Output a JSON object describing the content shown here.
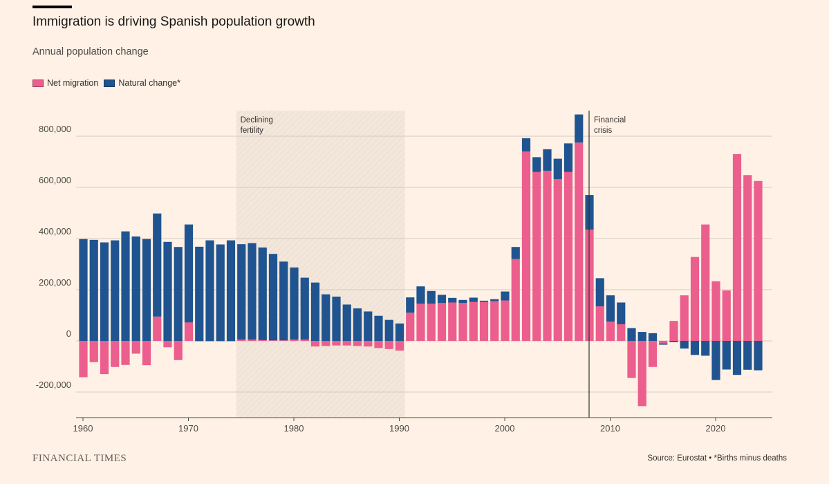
{
  "header": {
    "title": "Immigration is driving Spanish population growth",
    "subtitle": "Annual population change"
  },
  "colors": {
    "net_migration": "#eb5e8d",
    "natural_change": "#1f5490",
    "background": "#fff1e5",
    "grid": "#d6cbc0",
    "shade": "#f1e4d8"
  },
  "footer": {
    "brand": "FINANCIAL TIMES",
    "source": "Source: Eurostat • *Births minus deaths"
  },
  "chart_data": {
    "type": "bar",
    "stacked": true,
    "title": "Immigration is driving Spanish population growth",
    "subtitle": "Annual population change",
    "ylim": [
      -300000,
      900000
    ],
    "yticks": [
      -200000,
      0,
      200000,
      400000,
      600000,
      800000
    ],
    "ytick_labels": [
      "-200,000",
      "0",
      "200,000",
      "400,000",
      "600,000",
      "800,000"
    ],
    "xticks": [
      1960,
      1970,
      1980,
      1990,
      2000,
      2010,
      2020
    ],
    "grid": true,
    "legend_position": "top-left",
    "x": [
      1960,
      1961,
      1962,
      1963,
      1964,
      1965,
      1966,
      1967,
      1968,
      1969,
      1970,
      1971,
      1972,
      1973,
      1974,
      1975,
      1976,
      1977,
      1978,
      1979,
      1980,
      1981,
      1982,
      1983,
      1984,
      1985,
      1986,
      1987,
      1988,
      1989,
      1990,
      1991,
      1992,
      1993,
      1994,
      1995,
      1996,
      1997,
      1998,
      1999,
      2000,
      2001,
      2002,
      2003,
      2004,
      2005,
      2006,
      2007,
      2008,
      2009,
      2010,
      2011,
      2012,
      2013,
      2014,
      2015,
      2016,
      2017,
      2018,
      2019,
      2020,
      2021,
      2022,
      2023,
      2024
    ],
    "series": [
      {
        "name": "Net migration",
        "values": [
          -142000,
          -83000,
          -130000,
          -102000,
          -94000,
          -50000,
          -95000,
          95000,
          -25000,
          -75000,
          72000,
          -2000,
          -2000,
          -2000,
          -2000,
          5000,
          5000,
          3000,
          2000,
          2000,
          5000,
          5000,
          -22000,
          -20000,
          -18000,
          -18000,
          -20000,
          -22000,
          -28000,
          -32000,
          -38000,
          110000,
          145000,
          145000,
          148000,
          150000,
          148000,
          152000,
          152000,
          155000,
          158000,
          320000,
          740000,
          660000,
          665000,
          632000,
          660000,
          775000,
          435000,
          135000,
          75000,
          65000,
          -145000,
          -255000,
          -102000,
          -10000,
          78000,
          178000,
          328000,
          455000,
          233000,
          197000,
          730000,
          648000,
          625000
        ]
      },
      {
        "name": "Natural change*",
        "values": [
          398000,
          395000,
          385000,
          393000,
          428000,
          408000,
          398000,
          403000,
          387000,
          367000,
          383000,
          368000,
          393000,
          377000,
          393000,
          373000,
          377000,
          362000,
          338000,
          308000,
          282000,
          242000,
          228000,
          182000,
          173000,
          142000,
          127000,
          115000,
          98000,
          82000,
          68000,
          60000,
          68000,
          50000,
          32000,
          18000,
          12000,
          17000,
          5000,
          8000,
          35000,
          47000,
          52000,
          58000,
          84000,
          80000,
          112000,
          110000,
          135000,
          110000,
          103000,
          85000,
          50000,
          35000,
          30000,
          -5000,
          -5000,
          -30000,
          -55000,
          -58000,
          -153000,
          -112000,
          -133000,
          -113000,
          -115000
        ]
      }
    ],
    "annotations": [
      {
        "type": "shaded-range",
        "x_range": [
          1974.5,
          1990.5
        ],
        "label_lines": [
          "Declining",
          "fertility"
        ]
      },
      {
        "type": "vertical-line",
        "x": 2008,
        "label_lines": [
          "Financial",
          "crisis"
        ]
      }
    ]
  }
}
